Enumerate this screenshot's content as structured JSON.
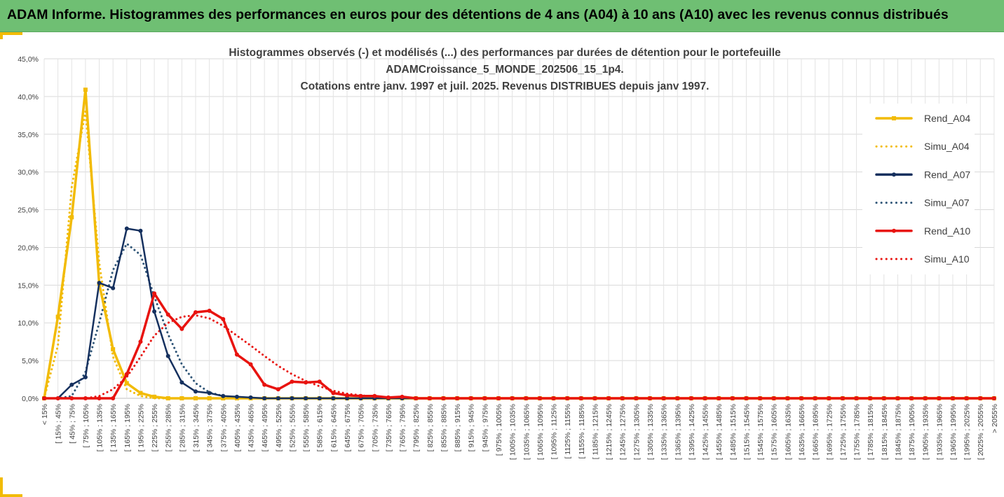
{
  "banner": {
    "title": "ADAM Informe. Histogrammes des performances en euros pour des détentions de 4 ans (A04) à 10 ans (A10) avec les revenus connus distribués"
  },
  "chart_data": {
    "type": "line",
    "title_lines": [
      "Histogrammes observés (-) et modélisés (...) des performances par durées de détention pour le portefeuille",
      "ADAMCroissance_5_MONDE_202506_15_1p4.",
      "Cotations entre janv. 1997 et juil. 2025. Revenus DISTRIBUES depuis janv 1997."
    ],
    "ylim": [
      0,
      45
    ],
    "yticks": [
      "0,0%",
      "5,0%",
      "10,0%",
      "15,0%",
      "20,0%",
      "25,0%",
      "30,0%",
      "35,0%",
      "40,0%",
      "45,0%"
    ],
    "grid": true,
    "legend_position": "right",
    "categories": [
      "< 15%",
      "[ 15% ; 45%",
      "[ 45% ; 75%",
      "[ 75% ; 105%",
      "[ 105% ; 135%",
      "[ 135% ; 165%",
      "[ 165% ; 195%",
      "[ 195% ; 225%",
      "[ 225% ; 255%",
      "[ 255% ; 285%",
      "[ 285% ; 315%",
      "[ 315% ; 345%",
      "[ 345% ; 375%",
      "[ 375% ; 405%",
      "[ 405% ; 435%",
      "[ 435% ; 465%",
      "[ 465% ; 495%",
      "[ 495% ; 525%",
      "[ 525% ; 555%",
      "[ 555% ; 585%",
      "[ 585% ; 615%",
      "[ 615% ; 645%",
      "[ 645% ; 675%",
      "[ 675% ; 705%",
      "[ 705% ; 735%",
      "[ 735% ; 765%",
      "[ 765% ; 795%",
      "[ 795% ; 825%",
      "[ 825% ; 855%",
      "[ 855% ; 885%",
      "[ 885% ; 915%",
      "[ 915% ; 945%",
      "[ 945% ; 975%",
      "[ 975% ; 1005%",
      "[ 1005% ; 1035%",
      "[ 1035% ; 1065%",
      "[ 1065% ; 1095%",
      "[ 1095% ; 1125%",
      "[ 1125% ; 1155%",
      "[ 1155% ; 1185%",
      "[ 1185% ; 1215%",
      "[ 1215% ; 1245%",
      "[ 1245% ; 1275%",
      "[ 1275% ; 1305%",
      "[ 1305% ; 1335%",
      "[ 1335% ; 1365%",
      "[ 1365% ; 1395%",
      "[ 1395% ; 1425%",
      "[ 1425% ; 1455%",
      "[ 1455% ; 1485%",
      "[ 1485% ; 1515%",
      "[ 1515% ; 1545%",
      "[ 1545% ; 1575%",
      "[ 1575% ; 1605%",
      "[ 1605% ; 1635%",
      "[ 1635% ; 1665%",
      "[ 1665% ; 1695%",
      "[ 1695% ; 1725%",
      "[ 1725% ; 1755%",
      "[ 1755% ; 1785%",
      "[ 1785% ; 1815%",
      "[ 1815% ; 1845%",
      "[ 1845% ; 1875%",
      "[ 1875% ; 1905%",
      "[ 1905% ; 1935%",
      "[ 1935% ; 1965%",
      "[ 1965% ; 1995%",
      "[ 1995% ; 2025%",
      "[ 2025% ; 2055%",
      "> 2055%"
    ],
    "series": [
      {
        "name": "Rend_A04",
        "color": "#f2bb05",
        "style": "solid",
        "marker": "square",
        "values": [
          0,
          10.8,
          24.0,
          40.9,
          15.2,
          6.5,
          2.0,
          0.7,
          0.2,
          0,
          0,
          0,
          0,
          0,
          0,
          0,
          0,
          0,
          0,
          0,
          0,
          0,
          0,
          0,
          0,
          0,
          0,
          0,
          0,
          0,
          0,
          0,
          0,
          0,
          0,
          0,
          0,
          0,
          0,
          0,
          0,
          0,
          0,
          0,
          0,
          0,
          0,
          0,
          0,
          0,
          0,
          0,
          0,
          0,
          0,
          0,
          0,
          0,
          0,
          0,
          0,
          0,
          0,
          0,
          0,
          0,
          0,
          0,
          0,
          0
        ]
      },
      {
        "name": "Simu_A04",
        "color": "#f2bb05",
        "style": "dotted",
        "marker": "none",
        "values": [
          0,
          7.0,
          28.0,
          38.0,
          18.0,
          5.5,
          1.2,
          0.3,
          0,
          0,
          0,
          0,
          0,
          0,
          0,
          0,
          0,
          0,
          0,
          0,
          0,
          0,
          0,
          0,
          0,
          0,
          0,
          0,
          0,
          0,
          0,
          0,
          0,
          0,
          0,
          0,
          0,
          0,
          0,
          0,
          0,
          0,
          0,
          0,
          0,
          0,
          0,
          0,
          0,
          0,
          0,
          0,
          0,
          0,
          0,
          0,
          0,
          0,
          0,
          0,
          0,
          0,
          0,
          0,
          0,
          0,
          0,
          0,
          0,
          0
        ]
      },
      {
        "name": "Rend_A07",
        "color": "#15305e",
        "style": "solid",
        "marker": "circle",
        "values": [
          0,
          0,
          1.8,
          2.8,
          15.3,
          14.6,
          22.5,
          22.2,
          11.5,
          5.6,
          2.1,
          0.9,
          0.7,
          0.3,
          0.2,
          0.1,
          0,
          0,
          0,
          0,
          0,
          0,
          0,
          0,
          0,
          0,
          0,
          0,
          0,
          0,
          0,
          0,
          0,
          0,
          0,
          0,
          0,
          0,
          0,
          0,
          0,
          0,
          0,
          0,
          0,
          0,
          0,
          0,
          0,
          0,
          0,
          0,
          0,
          0,
          0,
          0,
          0,
          0,
          0,
          0,
          0,
          0,
          0,
          0,
          0,
          0,
          0,
          0,
          0,
          0
        ]
      },
      {
        "name": "Simu_A07",
        "color": "#2f5577",
        "style": "dotted",
        "marker": "none",
        "values": [
          0,
          0,
          0.3,
          3.5,
          10.0,
          17.0,
          20.5,
          19.0,
          13.5,
          8.5,
          4.5,
          2.0,
          0.8,
          0.3,
          0.1,
          0,
          0,
          0,
          0,
          0,
          0,
          0,
          0,
          0,
          0,
          0,
          0,
          0,
          0,
          0,
          0,
          0,
          0,
          0,
          0,
          0,
          0,
          0,
          0,
          0,
          0,
          0,
          0,
          0,
          0,
          0,
          0,
          0,
          0,
          0,
          0,
          0,
          0,
          0,
          0,
          0,
          0,
          0,
          0,
          0,
          0,
          0,
          0,
          0,
          0,
          0,
          0,
          0,
          0,
          0
        ]
      },
      {
        "name": "Rend_A10",
        "color": "#e8130f",
        "style": "solid",
        "marker": "circle",
        "values": [
          0,
          0,
          0,
          0,
          0,
          0,
          3.2,
          7.5,
          13.9,
          11.1,
          9.2,
          11.4,
          11.6,
          10.5,
          5.8,
          4.5,
          1.8,
          1.2,
          2.2,
          2.1,
          2.2,
          0.7,
          0.4,
          0.3,
          0.3,
          0.1,
          0.2,
          0,
          0,
          0,
          0,
          0,
          0,
          0,
          0,
          0,
          0,
          0,
          0,
          0,
          0,
          0,
          0,
          0,
          0,
          0,
          0,
          0,
          0,
          0,
          0,
          0,
          0,
          0,
          0,
          0,
          0,
          0,
          0,
          0,
          0,
          0,
          0,
          0,
          0,
          0,
          0,
          0,
          0,
          0
        ]
      },
      {
        "name": "Simu_A10",
        "color": "#e8130f",
        "style": "dotted",
        "marker": "none",
        "values": [
          0,
          0,
          0,
          0,
          0.3,
          1.2,
          2.8,
          5.5,
          8.3,
          10.0,
          10.8,
          11.0,
          10.6,
          9.6,
          8.3,
          7.0,
          5.6,
          4.3,
          3.2,
          2.3,
          1.6,
          1.0,
          0.6,
          0.4,
          0.2,
          0.1,
          0.1,
          0,
          0,
          0,
          0,
          0,
          0,
          0,
          0,
          0,
          0,
          0,
          0,
          0,
          0,
          0,
          0,
          0,
          0,
          0,
          0,
          0,
          0,
          0,
          0,
          0,
          0,
          0,
          0,
          0,
          0,
          0,
          0,
          0,
          0,
          0,
          0,
          0,
          0,
          0,
          0,
          0,
          0,
          0
        ]
      }
    ]
  }
}
